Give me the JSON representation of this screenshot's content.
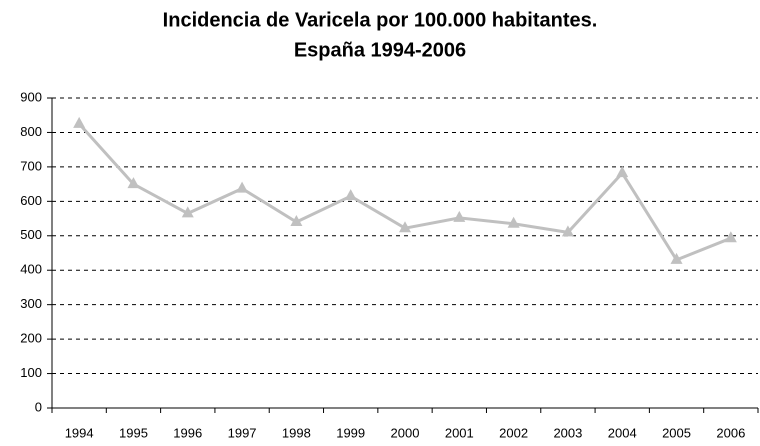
{
  "chart_data": {
    "type": "line",
    "title": "Incidencia de Varicela por 100.000 habitantes.",
    "subtitle": "España 1994-2006",
    "categories": [
      "1994",
      "1995",
      "1996",
      "1997",
      "1998",
      "1999",
      "2000",
      "2001",
      "2002",
      "2003",
      "2004",
      "2005",
      "2006"
    ],
    "values": [
      825,
      650,
      565,
      637,
      540,
      615,
      522,
      552,
      535,
      510,
      682,
      430,
      493
    ],
    "color": "#c0c0c0",
    "ylim": [
      0,
      900
    ],
    "yticks": [
      0,
      100,
      200,
      300,
      400,
      500,
      600,
      700,
      800,
      900
    ],
    "grid": true,
    "marker": "triangle"
  }
}
